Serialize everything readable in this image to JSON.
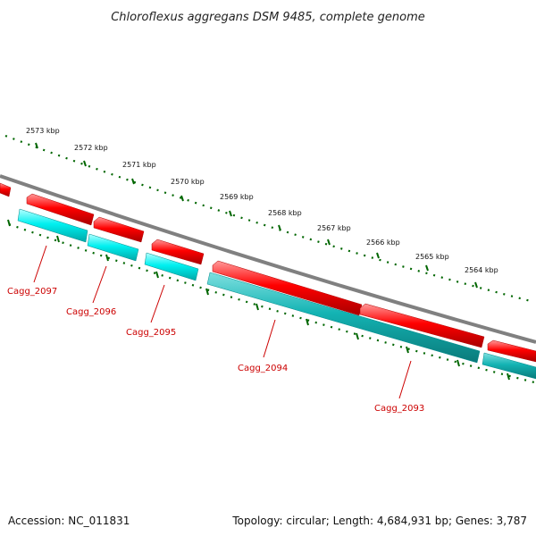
{
  "title": "Chloroflexus aggregans DSM 9485, complete genome",
  "accession_text": "Accession: NC_011831",
  "stats_text": "Topology: circular; Length: 4,684,931 bp; Genes: 3,787",
  "colors": {
    "forward_gene": "#ff0000",
    "reverse_gene": "#00ffff",
    "reverse_gene_dark": "#00b4b4",
    "backbone": "#808080",
    "ticks": "#006600",
    "gene_label": "#cc0000"
  },
  "tick_labels": [
    "2573 kbp",
    "2572 kbp",
    "2571 kbp",
    "2570 kbp",
    "2569 kbp",
    "2568 kbp",
    "2567 kbp",
    "2566 kbp",
    "2565 kbp",
    "2564 kbp"
  ],
  "gene_labels": [
    "Cagg_2097",
    "Cagg_2096",
    "Cagg_2095",
    "Cagg_2094",
    "Cagg_2093"
  ]
}
